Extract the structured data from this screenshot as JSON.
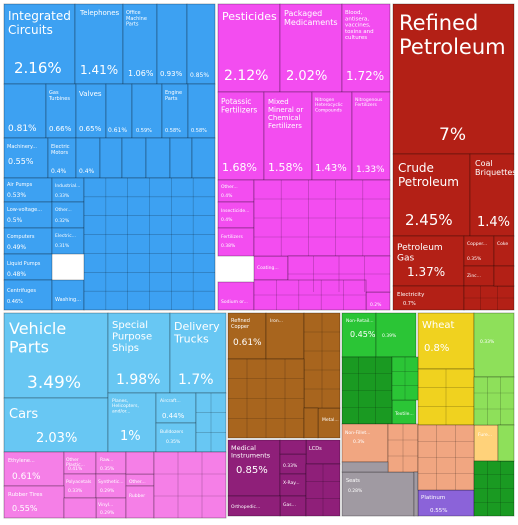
{
  "chart_data": {
    "type": "treemap",
    "colors": {
      "machines": "#3da1f2",
      "chemicals": "#f34df0",
      "mineral": "#b32016",
      "transport": "#68c7f3",
      "metals": "#a8651e",
      "instruments": "#8f1f79",
      "vegetable": "#f0d21f",
      "plastics": "#f57fe7",
      "foodstuffs": "#1a9a22",
      "textiles": "#2bc536",
      "other": "#8ee05a",
      "stone": "#f1a681",
      "misc": "#8b63d9",
      "paper": "#a09aa2",
      "weapons": "#c8cfdc",
      "animal": "#ffd27a"
    },
    "items": [
      {
        "label": "Integrated Circuits",
        "value": "2.16%",
        "category": "machines"
      },
      {
        "label": "Telephones",
        "value": "1.41%",
        "category": "machines"
      },
      {
        "label": "Office Machine Parts",
        "value": "1.06%",
        "category": "machines"
      },
      {
        "label": "",
        "value": "0.93%",
        "category": "machines"
      },
      {
        "label": "",
        "value": "0.85%",
        "category": "machines"
      },
      {
        "label": "",
        "value": "0.81%",
        "category": "machines"
      },
      {
        "label": "Gas Turbines",
        "value": "0.66%",
        "category": "machines"
      },
      {
        "label": "Valves",
        "value": "0.65%",
        "category": "machines"
      },
      {
        "label": "",
        "value": "0.61%",
        "category": "machines"
      },
      {
        "label": "",
        "value": "0.59%",
        "category": "machines"
      },
      {
        "label": "Engine Parts",
        "value": "0.58%",
        "category": "machines"
      },
      {
        "label": "",
        "value": "0.58%",
        "category": "machines"
      },
      {
        "label": "Machinery...",
        "value": "0.55%",
        "category": "machines"
      },
      {
        "label": "Electric Motors",
        "value": "0.4%",
        "category": "machines"
      },
      {
        "label": "",
        "value": "0.4%",
        "category": "machines"
      },
      {
        "label": "Air Pumps",
        "value": "0.53%",
        "category": "machines"
      },
      {
        "label": "Industrial...",
        "value": "0.33%",
        "category": "machines"
      },
      {
        "label": "Low-voltage...",
        "value": "0.5%",
        "category": "machines"
      },
      {
        "label": "Other...",
        "value": "0.32%",
        "category": "machines"
      },
      {
        "label": "Computers",
        "value": "0.49%",
        "category": "machines"
      },
      {
        "label": "Electric...",
        "value": "0.31%",
        "category": "machines"
      },
      {
        "label": "Liquid Pumps",
        "value": "0.48%",
        "category": "machines"
      },
      {
        "label": "Centrifuges",
        "value": "0.46%",
        "category": "machines"
      },
      {
        "label": "Washing...",
        "value": "",
        "category": "machines"
      },
      {
        "label": "Pesticides",
        "value": "2.12%",
        "category": "chemicals"
      },
      {
        "label": "Packaged Medicaments",
        "value": "2.02%",
        "category": "chemicals"
      },
      {
        "label": "Blood, antisera, vaccines, toxins and cultures",
        "value": "1.72%",
        "category": "chemicals"
      },
      {
        "label": "Potassic Fertilizers",
        "value": "1.68%",
        "category": "chemicals"
      },
      {
        "label": "Mixed Mineral or Chemical Fertilizers",
        "value": "1.58%",
        "category": "chemicals"
      },
      {
        "label": "Nitrogen Heterocyclic Compounds",
        "value": "1.43%",
        "category": "chemicals"
      },
      {
        "label": "Nitrogenous Fertilizers",
        "value": "1.33%",
        "category": "chemicals"
      },
      {
        "label": "Other...",
        "value": "0.4%",
        "category": "chemicals"
      },
      {
        "label": "Insecticide...",
        "value": "0.4%",
        "category": "chemicals"
      },
      {
        "label": "Fertilizers",
        "value": "0.38%",
        "category": "chemicals"
      },
      {
        "label": "Coating...",
        "value": "",
        "category": "chemicals"
      },
      {
        "label": "Sodium or...",
        "value": "",
        "category": "chemicals"
      },
      {
        "label": "",
        "value": "0.2%",
        "category": "chemicals"
      },
      {
        "label": "Refined Petroleum",
        "value": "7%",
        "category": "mineral"
      },
      {
        "label": "Crude Petroleum",
        "value": "2.45%",
        "category": "mineral"
      },
      {
        "label": "Coal Briquettes",
        "value": "1.4%",
        "category": "mineral"
      },
      {
        "label": "Petroleum Gas",
        "value": "1.37%",
        "category": "mineral"
      },
      {
        "label": "Copper...",
        "value": "0.35%",
        "category": "mineral"
      },
      {
        "label": "Coke",
        "value": "",
        "category": "mineral"
      },
      {
        "label": "Zinc...",
        "value": "",
        "category": "mineral"
      },
      {
        "label": "Electricity",
        "value": "0.7%",
        "category": "mineral"
      },
      {
        "label": "Vehicle Parts",
        "value": "3.49%",
        "category": "transport"
      },
      {
        "label": "Special Purpose Ships",
        "value": "1.98%",
        "category": "transport"
      },
      {
        "label": "Delivery Trucks",
        "value": "1.7%",
        "category": "transport"
      },
      {
        "label": "Cars",
        "value": "2.03%",
        "category": "transport"
      },
      {
        "label": "Planes, Helicopters, and/or...",
        "value": "1%",
        "category": "transport"
      },
      {
        "label": "Aircraft...",
        "value": "0.44%",
        "category": "transport"
      },
      {
        "label": "Bulldozers",
        "value": "0.35%",
        "category": "transport"
      },
      {
        "label": "Refined Copper",
        "value": "0.61%",
        "category": "metals"
      },
      {
        "label": "Iron...",
        "value": "",
        "category": "metals"
      },
      {
        "label": "Metal...",
        "value": "",
        "category": "metals"
      },
      {
        "label": "Medical Instruments",
        "value": "0.85%",
        "category": "instruments"
      },
      {
        "label": "LCDs",
        "value": "",
        "category": "instruments"
      },
      {
        "label": "",
        "value": "0.33%",
        "category": "instruments"
      },
      {
        "label": "X-Ray...",
        "value": "",
        "category": "instruments"
      },
      {
        "label": "Gas...",
        "value": "",
        "category": "instruments"
      },
      {
        "label": "Orthopedic...",
        "value": "",
        "category": "instruments"
      },
      {
        "label": "Wheat",
        "value": "0.8%",
        "category": "vegetable"
      },
      {
        "label": "",
        "value": "0.33%",
        "category": "vegetable"
      },
      {
        "label": "Ethylene...",
        "value": "0.61%",
        "category": "plastics"
      },
      {
        "label": "Other Plastic...",
        "value": "0.41%",
        "category": "plastics"
      },
      {
        "label": "Polyacetals",
        "value": "0.33%",
        "category": "plastics"
      },
      {
        "label": "Raw...",
        "value": "0.35%",
        "category": "plastics"
      },
      {
        "label": "Synthetic...",
        "value": "0.29%",
        "category": "plastics"
      },
      {
        "label": "Other...",
        "value": "",
        "category": "plastics"
      },
      {
        "label": "Vinyl...",
        "value": "0.29%",
        "category": "plastics"
      },
      {
        "label": "Rubber",
        "value": "",
        "category": "plastics"
      },
      {
        "label": "Rubber Tires",
        "value": "0.55%",
        "category": "plastics"
      },
      {
        "label": "Non-Retail...",
        "value": "0.45%",
        "category": "textiles"
      },
      {
        "label": "",
        "value": "0.39%",
        "category": "textiles"
      },
      {
        "label": "Textile...",
        "value": "",
        "category": "textiles"
      },
      {
        "label": "Non-Fillet...",
        "value": "0.3%",
        "category": "stone"
      },
      {
        "label": "Fure...",
        "value": "",
        "category": "stone"
      },
      {
        "label": "Seats",
        "value": "0.28%",
        "category": "misc"
      },
      {
        "label": "Platinum",
        "value": "0.55%",
        "category": "misc"
      }
    ]
  }
}
